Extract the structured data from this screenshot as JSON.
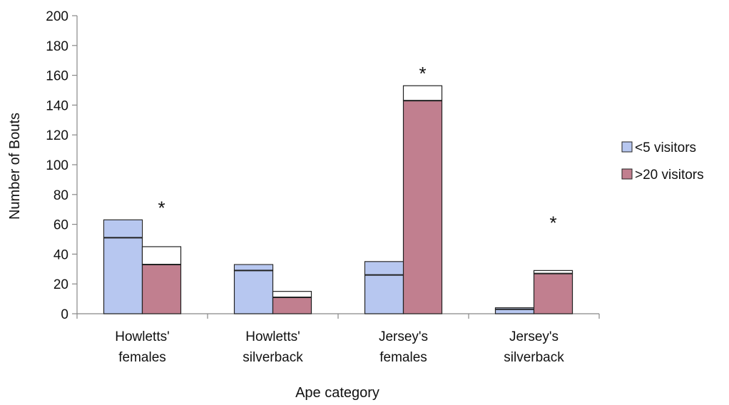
{
  "chart_data": {
    "type": "bar",
    "categories": [
      [
        "Howletts'",
        "females"
      ],
      [
        "Howletts'",
        "silverback"
      ],
      [
        "Jersey's",
        "females"
      ],
      [
        "Jersey's",
        "silverback"
      ]
    ],
    "series": [
      {
        "name": "<5 visitors",
        "color": "#b7c7f0",
        "values": [
          63,
          33,
          35,
          4
        ],
        "inner_line": [
          51,
          29,
          26,
          3
        ]
      },
      {
        "name": ">20 visitors",
        "color": "#c17f8f",
        "values": [
          45,
          15,
          153,
          29
        ],
        "inner_line": [
          33,
          11,
          143,
          27
        ]
      }
    ],
    "significance": [
      "*",
      "",
      "*",
      "*"
    ],
    "xlabel": "Ape category",
    "ylabel": "Number of Bouts",
    "ylim": [
      0,
      200
    ],
    "yticks": [
      0,
      20,
      40,
      60,
      80,
      100,
      120,
      140,
      160,
      180,
      200
    ],
    "grid": false,
    "legend": "right"
  }
}
